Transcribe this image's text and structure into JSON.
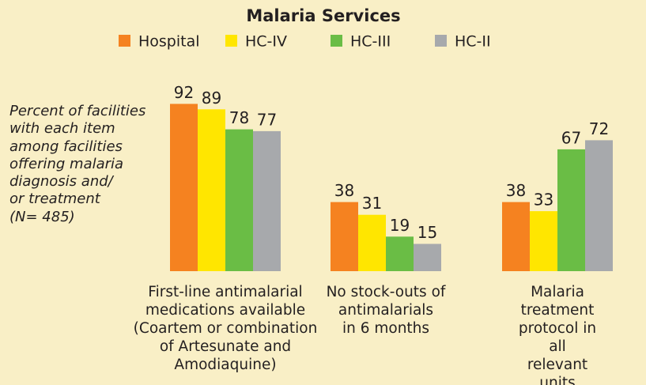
{
  "chart_data": {
    "type": "bar",
    "title": "Malaria Services",
    "y_label": "Percent of facilities\nwith each item\namong facilities\noffering malaria\ndiagnosis and/\nor treatment\n(N= 485)",
    "categories": [
      "First-line antimalarial\nmedications available\n(Coartem or combination\nof Artesunate and\nAmodiaquine)",
      "No stock-outs of\nantimalarials\nin 6 months",
      "Malaria treatment\nprotocol in all\nrelevant units"
    ],
    "series": [
      {
        "name": "Hospital",
        "color": "#f58220",
        "values": [
          92,
          38,
          38
        ]
      },
      {
        "name": "HC-IV",
        "color": "#ffe600",
        "values": [
          89,
          31,
          33
        ]
      },
      {
        "name": "HC-III",
        "color": "#6abd45",
        "values": [
          78,
          19,
          67
        ]
      },
      {
        "name": "HC-II",
        "color": "#a7a9ac",
        "values": [
          77,
          15,
          72
        ]
      }
    ],
    "legend": "top"
  }
}
